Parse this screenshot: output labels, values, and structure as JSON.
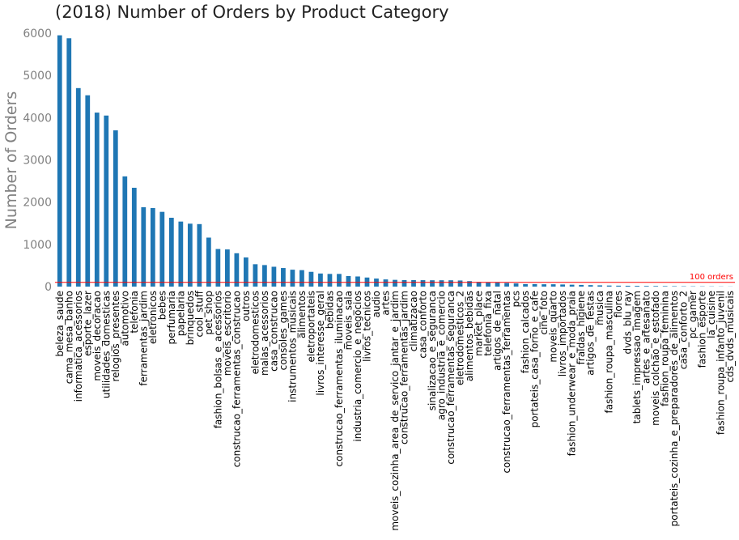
{
  "chart_data": {
    "type": "bar",
    "title": "(2018) Number of Orders by Product Category",
    "xlabel": "",
    "ylabel": "Number of Orders",
    "ylim": [
      0,
      6000
    ],
    "yticks": [
      0,
      1000,
      2000,
      3000,
      4000,
      5000,
      6000
    ],
    "bar_color": "#1f77b4",
    "reference_line": {
      "value": 100,
      "label": "100 orders",
      "color": "#ff0000"
    },
    "categories": [
      "beleza_saude",
      "cama_mesa_banho",
      "informatica_acessorios",
      "esporte_lazer",
      "moveis_decoracao",
      "utilidades_domesticas",
      "relogios_presentes",
      "automotivo",
      "telefonia",
      "ferramentas_jardim",
      "eletronicos",
      "bebes",
      "perfumaria",
      "papelaria",
      "brinquedos",
      "cool_stuff",
      "pet_shop",
      "fashion_bolsas_e_acessorios",
      "moveis_escritorio",
      "construcao_ferramentas_construcao",
      "outros",
      "eletrodomesticos",
      "malas_acessorios",
      "casa_construcao",
      "consoles_games",
      "instrumentos_musicais",
      "alimentos",
      "eletroportateis",
      "livros_interesse_geral",
      "bebidas",
      "construcao_ferramentas_iluminacao",
      "moveis_sala",
      "industria_comercio_e_negocios",
      "livros_tecnicos",
      "audio",
      "artes",
      "moveis_cozinha_area_de_servico_jantar_e_jardim",
      "construcao_ferramentas_jardim",
      "climatizacao",
      "casa_conforto",
      "sinalizacao_e_seguranca",
      "agro_industria_e_comercio",
      "construcao_ferramentas_seguranca",
      "eletrodomesticos_2",
      "alimentos_bebidas",
      "market_place",
      "telefonia_fixa",
      "artigos_de_natal",
      "construcao_ferramentas_ferramentas",
      "pcs",
      "fashion_calcados",
      "portateis_casa_forno_e_cafe",
      "cine_foto",
      "moveis_quarto",
      "livros_importados",
      "fashion_underwear_e_moda_praia",
      "fraldas_higiene",
      "artigos_de_festas",
      "musica",
      "fashion_roupa_masculina",
      "flores",
      "dvds_blu_ray",
      "tablets_impressao_imagem",
      "artes_e_artesanato",
      "moveis_colchao_e_estofado",
      "fashion_roupa_feminina",
      "portateis_cozinha_e_preparadores_de_alimentos",
      "casa_conforto_2",
      "pc_gamer",
      "fashion_esporte",
      "la_cuisine",
      "fashion_roupa_infanto_juvenil",
      "cds_dvds_musicais"
    ],
    "values": [
      5950,
      5880,
      4700,
      4530,
      4120,
      4050,
      3700,
      2610,
      2340,
      1880,
      1860,
      1770,
      1630,
      1540,
      1490,
      1480,
      1160,
      890,
      880,
      790,
      690,
      530,
      510,
      470,
      440,
      400,
      390,
      350,
      310,
      300,
      300,
      250,
      240,
      215,
      190,
      170,
      160,
      155,
      155,
      152,
      150,
      150,
      150,
      145,
      130,
      110,
      100,
      95,
      85,
      75,
      60,
      60,
      55,
      55,
      50,
      45,
      40,
      35,
      30,
      25,
      22,
      20,
      18,
      15,
      14,
      12,
      10,
      8,
      7,
      6,
      5,
      4,
      3
    ]
  }
}
